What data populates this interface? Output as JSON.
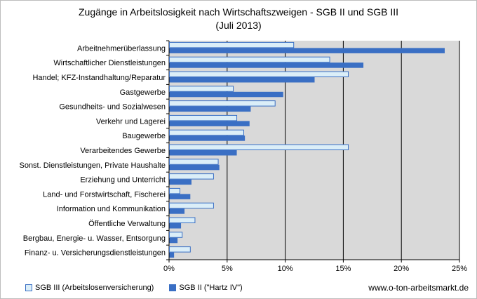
{
  "chart_data": {
    "type": "bar",
    "orientation": "horizontal",
    "title": "Zugänge in Arbeitslosigkeit nach Wirtschaftszweigen - SGB II und SGB III",
    "subtitle": "(Juli 2013)",
    "categories": [
      "Arbeitnehmerüberlassung",
      "Wirtschaftlicher Dienstleistungen",
      "Handel; KFZ-Instandhaltung/Reparatur",
      "Gastgewerbe",
      "Gesundheits- und Sozialwesen",
      "Verkehr und Lagerei",
      "Baugewerbe",
      "Verarbeitendes Gewerbe",
      "Sonst. Dienstleistungen, Private Haushalte",
      "Erziehung und Unterricht",
      "Land- und Forstwirtschaft, Fischerei",
      "Information und Kommunikation",
      "Öffentliche Verwaltung",
      "Bergbau, Energie- u. Wasser, Entsorgung",
      "Finanz- u. Versicherungsdienstleistungen"
    ],
    "series": [
      {
        "name": "SGB III (Arbeitslosenversicherung)",
        "color": "#dbeef8",
        "values": [
          10.7,
          13.8,
          15.4,
          5.5,
          9.1,
          5.8,
          6.4,
          15.4,
          4.2,
          3.8,
          0.9,
          3.8,
          2.2,
          1.1,
          1.8
        ]
      },
      {
        "name": "SGB II (\"Hartz IV\")",
        "color": "#3a6fc4",
        "values": [
          23.7,
          16.7,
          12.5,
          9.8,
          7.0,
          6.9,
          6.5,
          5.8,
          4.3,
          1.9,
          1.8,
          1.3,
          1.0,
          0.7,
          0.4
        ]
      }
    ],
    "xlim": [
      0,
      25
    ],
    "xticks": [
      "0%",
      "5%",
      "10%",
      "15%",
      "20%",
      "25%"
    ],
    "grid": true,
    "legend_placement": "bottom-left"
  },
  "credit": "www.o-ton-arbeitsmarkt.de"
}
